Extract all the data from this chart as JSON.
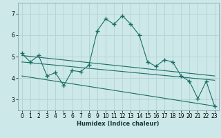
{
  "title": "",
  "xlabel": "Humidex (Indice chaleur)",
  "bg_color": "#cce8e8",
  "grid_color": "#b8d4d4",
  "line_color": "#1a6e65",
  "xlim": [
    -0.5,
    23.5
  ],
  "ylim": [
    2.5,
    7.5
  ],
  "xticks": [
    0,
    1,
    2,
    3,
    4,
    5,
    6,
    7,
    8,
    9,
    10,
    11,
    12,
    13,
    14,
    15,
    16,
    17,
    18,
    19,
    20,
    21,
    22,
    23
  ],
  "yticks": [
    3,
    4,
    5,
    6,
    7
  ],
  "jagged_x": [
    0,
    1,
    2,
    3,
    4,
    5,
    6,
    7,
    8,
    9,
    10,
    11,
    12,
    13,
    14,
    15,
    16,
    17,
    18,
    19,
    20,
    21,
    22,
    23
  ],
  "jagged_y": [
    5.15,
    4.75,
    5.05,
    4.1,
    4.25,
    3.65,
    4.35,
    4.3,
    4.6,
    6.2,
    6.75,
    6.5,
    6.9,
    6.5,
    6.0,
    4.75,
    4.55,
    4.85,
    4.75,
    4.1,
    3.85,
    3.05,
    3.85,
    2.7
  ],
  "line1_x": [
    0,
    23
  ],
  "line1_y": [
    5.05,
    4.1
  ],
  "line2_x": [
    0,
    23
  ],
  "line2_y": [
    4.75,
    3.9
  ],
  "line3_x": [
    0,
    23
  ],
  "line3_y": [
    4.1,
    2.7
  ]
}
